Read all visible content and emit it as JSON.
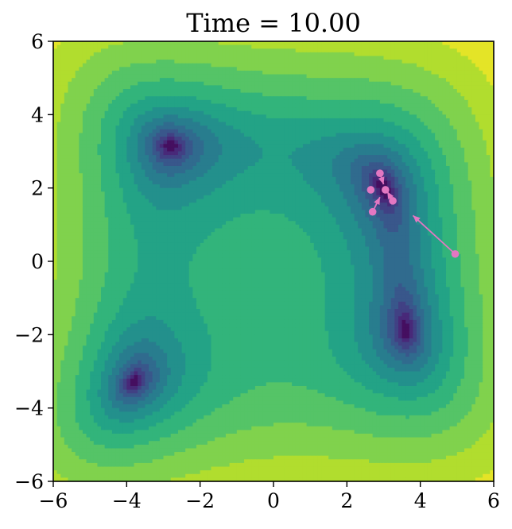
{
  "chart_data": {
    "type": "contour",
    "title": "Time = 10.00",
    "xlabel": "",
    "ylabel": "",
    "xlim": [
      -6,
      6
    ],
    "ylim": [
      -6,
      6
    ],
    "x_ticks": [
      -6,
      -4,
      -2,
      0,
      2,
      4,
      6
    ],
    "y_ticks": [
      -6,
      -4,
      -2,
      0,
      2,
      4,
      6
    ],
    "x_tick_labels": [
      "−6",
      "−4",
      "−2",
      "0",
      "2",
      "4",
      "6"
    ],
    "y_tick_labels": [
      "−6",
      "−4",
      "−2",
      "0",
      "2",
      "4",
      "6"
    ],
    "colormap": "viridis",
    "minima": [
      {
        "x": -2.805,
        "y": 3.131
      },
      {
        "x": -3.779,
        "y": -3.283
      },
      {
        "x": 3.584,
        "y": -1.848
      },
      {
        "x": 3.0,
        "y": 2.0
      }
    ],
    "particles": [
      {
        "x": 2.9,
        "y": 2.4
      },
      {
        "x": 2.65,
        "y": 1.95
      },
      {
        "x": 3.25,
        "y": 1.65
      },
      {
        "x": 2.7,
        "y": 1.35
      },
      {
        "x": 3.05,
        "y": 1.95
      },
      {
        "x": 4.95,
        "y": 0.2
      }
    ],
    "arrows": [
      {
        "from": [
          4.95,
          0.2
        ],
        "to": [
          3.8,
          1.25
        ]
      },
      {
        "from": [
          2.7,
          1.35
        ],
        "to": [
          2.9,
          1.75
        ]
      },
      {
        "from": [
          2.9,
          2.4
        ],
        "to": [
          3.0,
          2.1
        ]
      },
      {
        "from": [
          3.25,
          1.65
        ],
        "to": [
          3.1,
          1.9
        ]
      }
    ],
    "particle_color": "#e377c2",
    "grid": false
  }
}
